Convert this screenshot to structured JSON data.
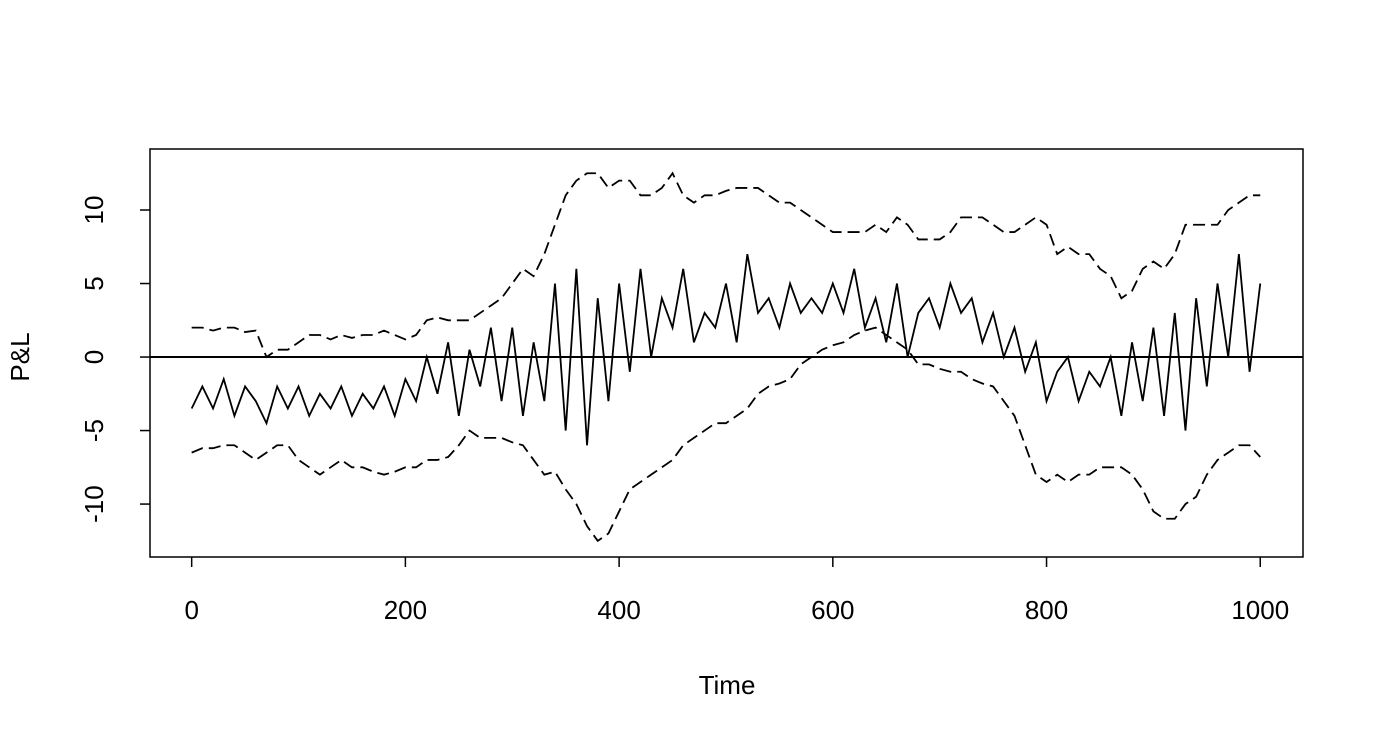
{
  "chart_data": {
    "type": "line",
    "xlabel": "Time",
    "ylabel": "P&L",
    "x": [
      0,
      10,
      20,
      30,
      40,
      50,
      60,
      70,
      80,
      90,
      100,
      110,
      120,
      130,
      140,
      150,
      160,
      170,
      180,
      190,
      200,
      210,
      220,
      230,
      240,
      250,
      260,
      270,
      280,
      290,
      300,
      310,
      320,
      330,
      340,
      350,
      360,
      370,
      380,
      390,
      400,
      410,
      420,
      430,
      440,
      450,
      460,
      470,
      480,
      490,
      500,
      510,
      520,
      530,
      540,
      550,
      560,
      570,
      580,
      590,
      600,
      610,
      620,
      630,
      640,
      650,
      660,
      670,
      680,
      690,
      700,
      710,
      720,
      730,
      740,
      750,
      760,
      770,
      780,
      790,
      800,
      810,
      820,
      830,
      840,
      850,
      860,
      870,
      880,
      890,
      900,
      910,
      920,
      930,
      940,
      950,
      960,
      970,
      980,
      990,
      1000
    ],
    "series": [
      {
        "color": "#000000",
        "style": "solid",
        "values": [
          -3.5,
          -2,
          -3.5,
          -1.5,
          -4,
          -2,
          -3,
          -4.5,
          -2,
          -3.5,
          -2,
          -4,
          -2.5,
          -3.5,
          -2,
          -4,
          -2.5,
          -3.5,
          -2,
          -4,
          -1.5,
          -3,
          0,
          -2.5,
          1,
          -4,
          0.5,
          -2,
          2,
          -3,
          2,
          -4,
          1,
          -3,
          5,
          -5,
          6,
          -6,
          4,
          -3,
          5,
          -1,
          6,
          0,
          4,
          2,
          6,
          1,
          3,
          2,
          5,
          1,
          7,
          3,
          4,
          2,
          5,
          3,
          4,
          3,
          5,
          3,
          6,
          2,
          4,
          1,
          5,
          0,
          3,
          4,
          2,
          5,
          3,
          4,
          1,
          3,
          0,
          2,
          -1,
          1,
          -3,
          -1,
          0,
          -3,
          -1,
          -2,
          0,
          -4,
          1,
          -3,
          2,
          -4,
          3,
          -5,
          4,
          -2,
          5,
          0,
          7,
          -1,
          5
        ]
      },
      {
        "color": "#000000",
        "style": "dashed",
        "values": [
          2,
          2,
          1.8,
          2,
          2,
          1.7,
          1.8,
          0,
          0.5,
          0.5,
          1,
          1.5,
          1.5,
          1.2,
          1.5,
          1.3,
          1.5,
          1.5,
          1.8,
          1.5,
          1.2,
          1.5,
          2.5,
          2.7,
          2.5,
          2.5,
          2.5,
          3,
          3.5,
          4,
          5,
          6,
          5.5,
          7,
          9,
          11,
          12,
          12.5,
          12.5,
          11.5,
          12,
          12,
          11,
          11,
          11.5,
          12.5,
          11,
          10.5,
          11,
          11,
          11.3,
          11.5,
          11.5,
          11.5,
          11,
          10.5,
          10.5,
          10,
          9.5,
          9,
          8.5,
          8.5,
          8.5,
          8.5,
          9,
          8.5,
          9.5,
          9,
          8,
          8,
          8,
          8.5,
          9.5,
          9.5,
          9.5,
          9,
          8.5,
          8.5,
          9,
          9.5,
          9,
          7,
          7.5,
          7,
          7,
          6,
          5.5,
          4,
          4.5,
          6,
          6.5,
          6,
          7,
          9,
          9,
          9,
          9,
          10,
          10.5,
          11,
          11
        ]
      },
      {
        "color": "#000000",
        "style": "dashed",
        "values": [
          -6.5,
          -6.2,
          -6.2,
          -6,
          -6,
          -6.5,
          -7,
          -6.5,
          -6,
          -6,
          -7,
          -7.5,
          -8,
          -7.5,
          -7,
          -7.5,
          -7.5,
          -7.8,
          -8,
          -7.8,
          -7.5,
          -7.5,
          -7,
          -7,
          -6.8,
          -6,
          -5,
          -5.5,
          -5.5,
          -5.5,
          -5.8,
          -6,
          -7,
          -8,
          -7.8,
          -9,
          -10,
          -11.5,
          -12.5,
          -12,
          -10.5,
          -9,
          -8.5,
          -8,
          -7.5,
          -7,
          -6,
          -5.5,
          -5,
          -4.5,
          -4.5,
          -4,
          -3.5,
          -2.5,
          -2,
          -1.8,
          -1.5,
          -0.5,
          0,
          0.5,
          0.8,
          1,
          1.5,
          1.8,
          2,
          1.5,
          1,
          0.5,
          -0.5,
          -0.5,
          -0.8,
          -1,
          -1,
          -1.5,
          -1.8,
          -2,
          -3,
          -4,
          -6,
          -8,
          -8.5,
          -8,
          -8.5,
          -8,
          -8,
          -7.5,
          -7.5,
          -7.5,
          -8,
          -9,
          -10.5,
          -11,
          -11,
          -10,
          -9.5,
          -8,
          -7,
          -6.5,
          -6,
          -6,
          -6.8
        ]
      }
    ],
    "hline": 0,
    "xlim": [
      -39,
      1040
    ],
    "xticks": [
      0,
      200,
      400,
      600,
      800,
      1000
    ],
    "ylim": [
      -13.6,
      14.15
    ],
    "yticks": [
      -10,
      -5,
      0,
      5,
      10
    ]
  }
}
